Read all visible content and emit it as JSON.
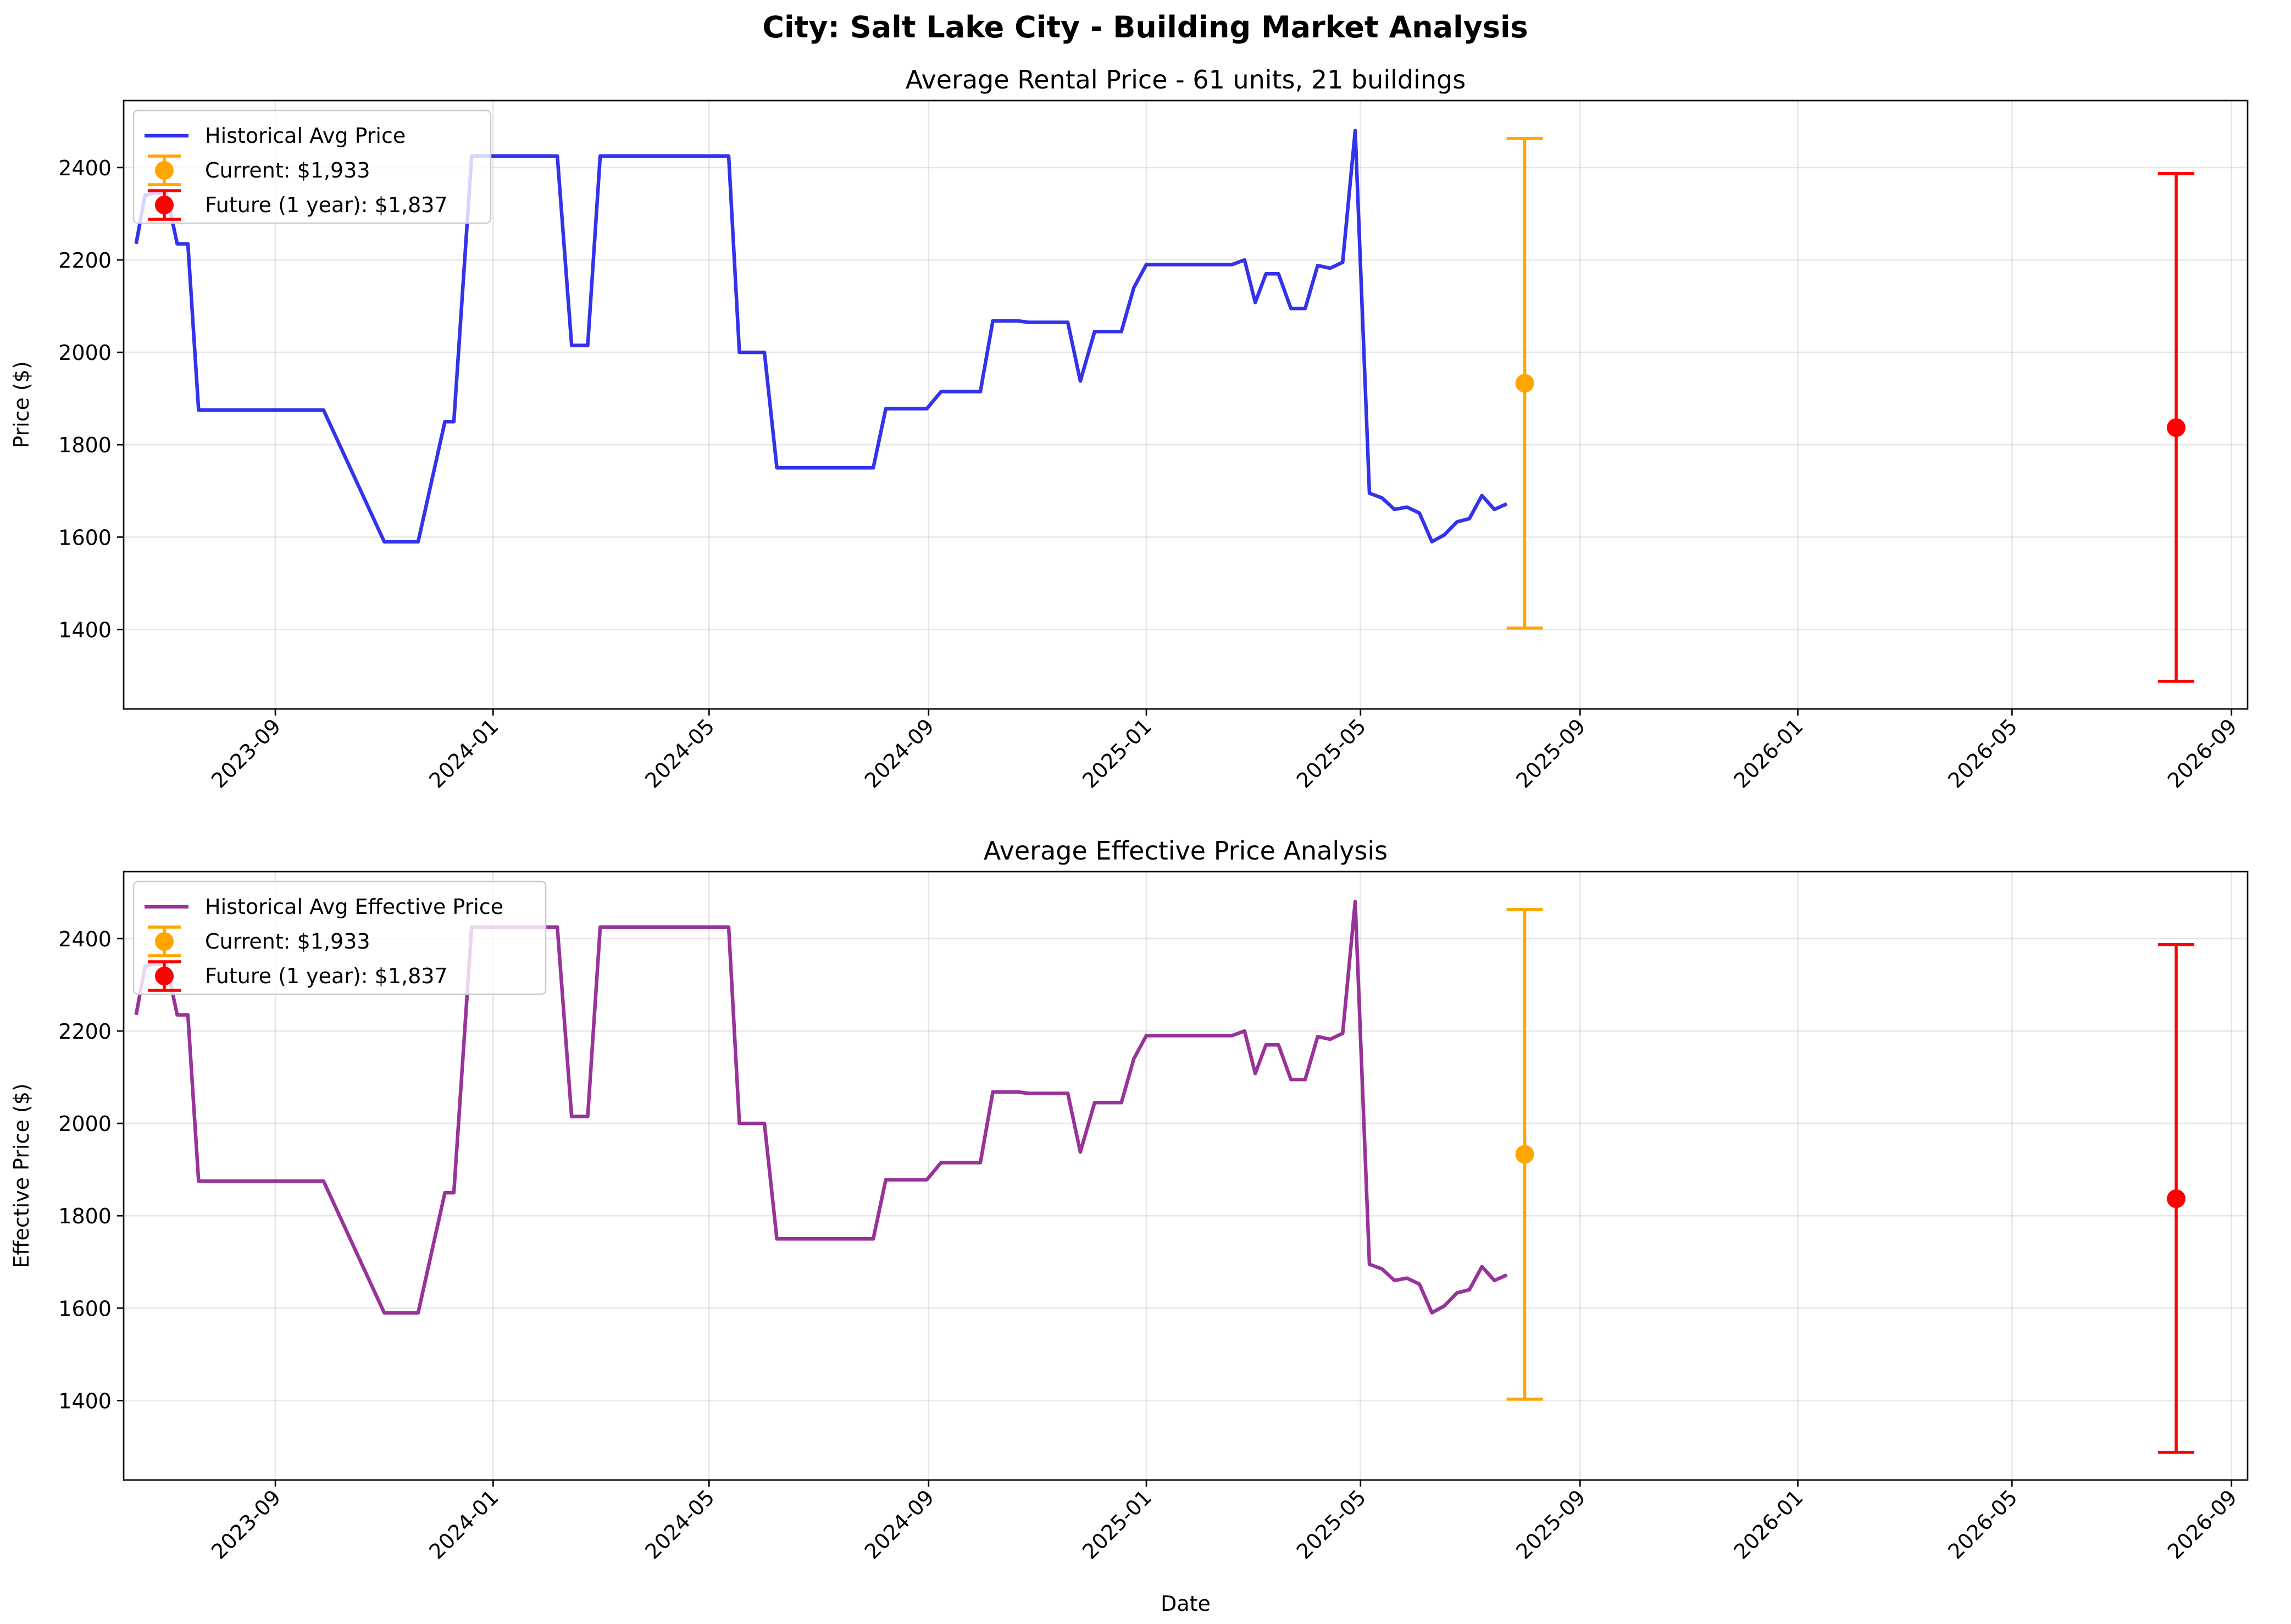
{
  "figure": {
    "title": "City: Salt Lake City - Building Market Analysis"
  },
  "chart_data": [
    {
      "type": "line",
      "title": "Average Rental Price - 61 units, 21 buildings",
      "xlabel": "",
      "ylabel": "Price ($)",
      "x_ticks": [
        "2023-09",
        "2024-01",
        "2024-05",
        "2024-09",
        "2025-01",
        "2025-05",
        "2025-09",
        "2026-01",
        "2026-05",
        "2026-09"
      ],
      "xlim": [
        "2023-06-08",
        "2026-09-10"
      ],
      "y_ticks": [
        1400,
        1600,
        1800,
        2000,
        2200,
        2400
      ],
      "ylim": [
        1228,
        2545
      ],
      "grid": true,
      "legend_position": "top-left",
      "series": [
        {
          "name": "Historical Avg Price",
          "color": "#0000e6",
          "points": [
            [
              "2023-06-15",
              2235
            ],
            [
              "2023-06-20",
              2340
            ],
            [
              "2023-06-25",
              2345
            ],
            [
              "2023-07-02",
              2345
            ],
            [
              "2023-07-08",
              2235
            ],
            [
              "2023-07-14",
              2235
            ],
            [
              "2023-07-20",
              1875
            ],
            [
              "2023-09-28",
              1875
            ],
            [
              "2023-11-01",
              1590
            ],
            [
              "2023-11-20",
              1590
            ],
            [
              "2023-12-05",
              1850
            ],
            [
              "2023-12-10",
              1850
            ],
            [
              "2023-12-20",
              2425
            ],
            [
              "2024-02-06",
              2425
            ],
            [
              "2024-02-14",
              2015
            ],
            [
              "2024-02-23",
              2015
            ],
            [
              "2024-03-01",
              2425
            ],
            [
              "2024-05-12",
              2425
            ],
            [
              "2024-05-18",
              2000
            ],
            [
              "2024-06-01",
              2000
            ],
            [
              "2024-06-08",
              1750
            ],
            [
              "2024-08-01",
              1750
            ],
            [
              "2024-08-08",
              1878
            ],
            [
              "2024-08-31",
              1878
            ],
            [
              "2024-09-08",
              1915
            ],
            [
              "2024-09-30",
              1915
            ],
            [
              "2024-10-07",
              2068
            ],
            [
              "2024-10-21",
              2068
            ],
            [
              "2024-10-27",
              2065
            ],
            [
              "2024-11-18",
              2065
            ],
            [
              "2024-11-25",
              1938
            ],
            [
              "2024-12-03",
              2045
            ],
            [
              "2024-12-18",
              2045
            ],
            [
              "2024-12-25",
              2140
            ],
            [
              "2025-01-01",
              2190
            ],
            [
              "2025-02-18",
              2190
            ],
            [
              "2025-02-25",
              2200
            ],
            [
              "2025-03-03",
              2108
            ],
            [
              "2025-03-09",
              2170
            ],
            [
              "2025-03-16",
              2170
            ],
            [
              "2025-03-23",
              2095
            ],
            [
              "2025-03-31",
              2095
            ],
            [
              "2025-04-07",
              2188
            ],
            [
              "2025-04-14",
              2182
            ],
            [
              "2025-04-21",
              2195
            ],
            [
              "2025-04-28",
              2480
            ],
            [
              "2025-05-06",
              1695
            ],
            [
              "2025-05-13",
              1685
            ],
            [
              "2025-05-20",
              1660
            ],
            [
              "2025-05-27",
              1665
            ],
            [
              "2025-06-03",
              1652
            ],
            [
              "2025-06-10",
              1590
            ],
            [
              "2025-06-17",
              1605
            ],
            [
              "2025-06-24",
              1633
            ],
            [
              "2025-07-01",
              1640
            ],
            [
              "2025-07-08",
              1690
            ],
            [
              "2025-07-15",
              1660
            ],
            [
              "2025-07-22",
              1672
            ]
          ]
        },
        {
          "name": "Current: $1,933",
          "color": "#ffa500",
          "marker": "errorbar",
          "points": [
            [
              "2025-08-01",
              1933,
              1403,
              2463
            ]
          ]
        },
        {
          "name": "Future (1 year): $1,837",
          "color": "#ff0000",
          "marker": "errorbar",
          "points": [
            [
              "2026-08-01",
              1837,
              1288,
              2387
            ]
          ]
        }
      ]
    },
    {
      "type": "line",
      "title": "Average Effective Price Analysis",
      "xlabel": "Date",
      "ylabel": "Effective Price ($)",
      "x_ticks": [
        "2023-09",
        "2024-01",
        "2024-05",
        "2024-09",
        "2025-01",
        "2025-05",
        "2025-09",
        "2026-01",
        "2026-05",
        "2026-09"
      ],
      "xlim": [
        "2023-06-08",
        "2026-09-10"
      ],
      "y_ticks": [
        1400,
        1600,
        1800,
        2000,
        2200,
        2400
      ],
      "ylim": [
        1228,
        2545
      ],
      "grid": true,
      "legend_position": "top-left",
      "series": [
        {
          "name": "Historical Avg Effective Price",
          "color": "#800080",
          "points": [
            [
              "2023-06-15",
              2235
            ],
            [
              "2023-06-20",
              2340
            ],
            [
              "2023-06-25",
              2345
            ],
            [
              "2023-07-02",
              2345
            ],
            [
              "2023-07-08",
              2235
            ],
            [
              "2023-07-14",
              2235
            ],
            [
              "2023-07-20",
              1875
            ],
            [
              "2023-09-28",
              1875
            ],
            [
              "2023-11-01",
              1590
            ],
            [
              "2023-11-20",
              1590
            ],
            [
              "2023-12-05",
              1850
            ],
            [
              "2023-12-10",
              1850
            ],
            [
              "2023-12-20",
              2425
            ],
            [
              "2024-02-06",
              2425
            ],
            [
              "2024-02-14",
              2015
            ],
            [
              "2024-02-23",
              2015
            ],
            [
              "2024-03-01",
              2425
            ],
            [
              "2024-05-12",
              2425
            ],
            [
              "2024-05-18",
              2000
            ],
            [
              "2024-06-01",
              2000
            ],
            [
              "2024-06-08",
              1750
            ],
            [
              "2024-08-01",
              1750
            ],
            [
              "2024-08-08",
              1878
            ],
            [
              "2024-08-31",
              1878
            ],
            [
              "2024-09-08",
              1915
            ],
            [
              "2024-09-30",
              1915
            ],
            [
              "2024-10-07",
              2068
            ],
            [
              "2024-10-21",
              2068
            ],
            [
              "2024-10-27",
              2065
            ],
            [
              "2024-11-18",
              2065
            ],
            [
              "2024-11-25",
              1938
            ],
            [
              "2024-12-03",
              2045
            ],
            [
              "2024-12-18",
              2045
            ],
            [
              "2024-12-25",
              2140
            ],
            [
              "2025-01-01",
              2190
            ],
            [
              "2025-02-18",
              2190
            ],
            [
              "2025-02-25",
              2200
            ],
            [
              "2025-03-03",
              2108
            ],
            [
              "2025-03-09",
              2170
            ],
            [
              "2025-03-16",
              2170
            ],
            [
              "2025-03-23",
              2095
            ],
            [
              "2025-03-31",
              2095
            ],
            [
              "2025-04-07",
              2188
            ],
            [
              "2025-04-14",
              2182
            ],
            [
              "2025-04-21",
              2195
            ],
            [
              "2025-04-28",
              2480
            ],
            [
              "2025-05-06",
              1695
            ],
            [
              "2025-05-13",
              1685
            ],
            [
              "2025-05-20",
              1660
            ],
            [
              "2025-05-27",
              1665
            ],
            [
              "2025-06-03",
              1652
            ],
            [
              "2025-06-10",
              1590
            ],
            [
              "2025-06-17",
              1605
            ],
            [
              "2025-06-24",
              1633
            ],
            [
              "2025-07-01",
              1640
            ],
            [
              "2025-07-08",
              1690
            ],
            [
              "2025-07-15",
              1660
            ],
            [
              "2025-07-22",
              1672
            ]
          ]
        },
        {
          "name": "Current: $1,933",
          "color": "#ffa500",
          "marker": "errorbar",
          "points": [
            [
              "2025-08-01",
              1933,
              1403,
              2463
            ]
          ]
        },
        {
          "name": "Future (1 year): $1,837",
          "color": "#ff0000",
          "marker": "errorbar",
          "points": [
            [
              "2026-08-01",
              1837,
              1288,
              2387
            ]
          ]
        }
      ]
    }
  ]
}
